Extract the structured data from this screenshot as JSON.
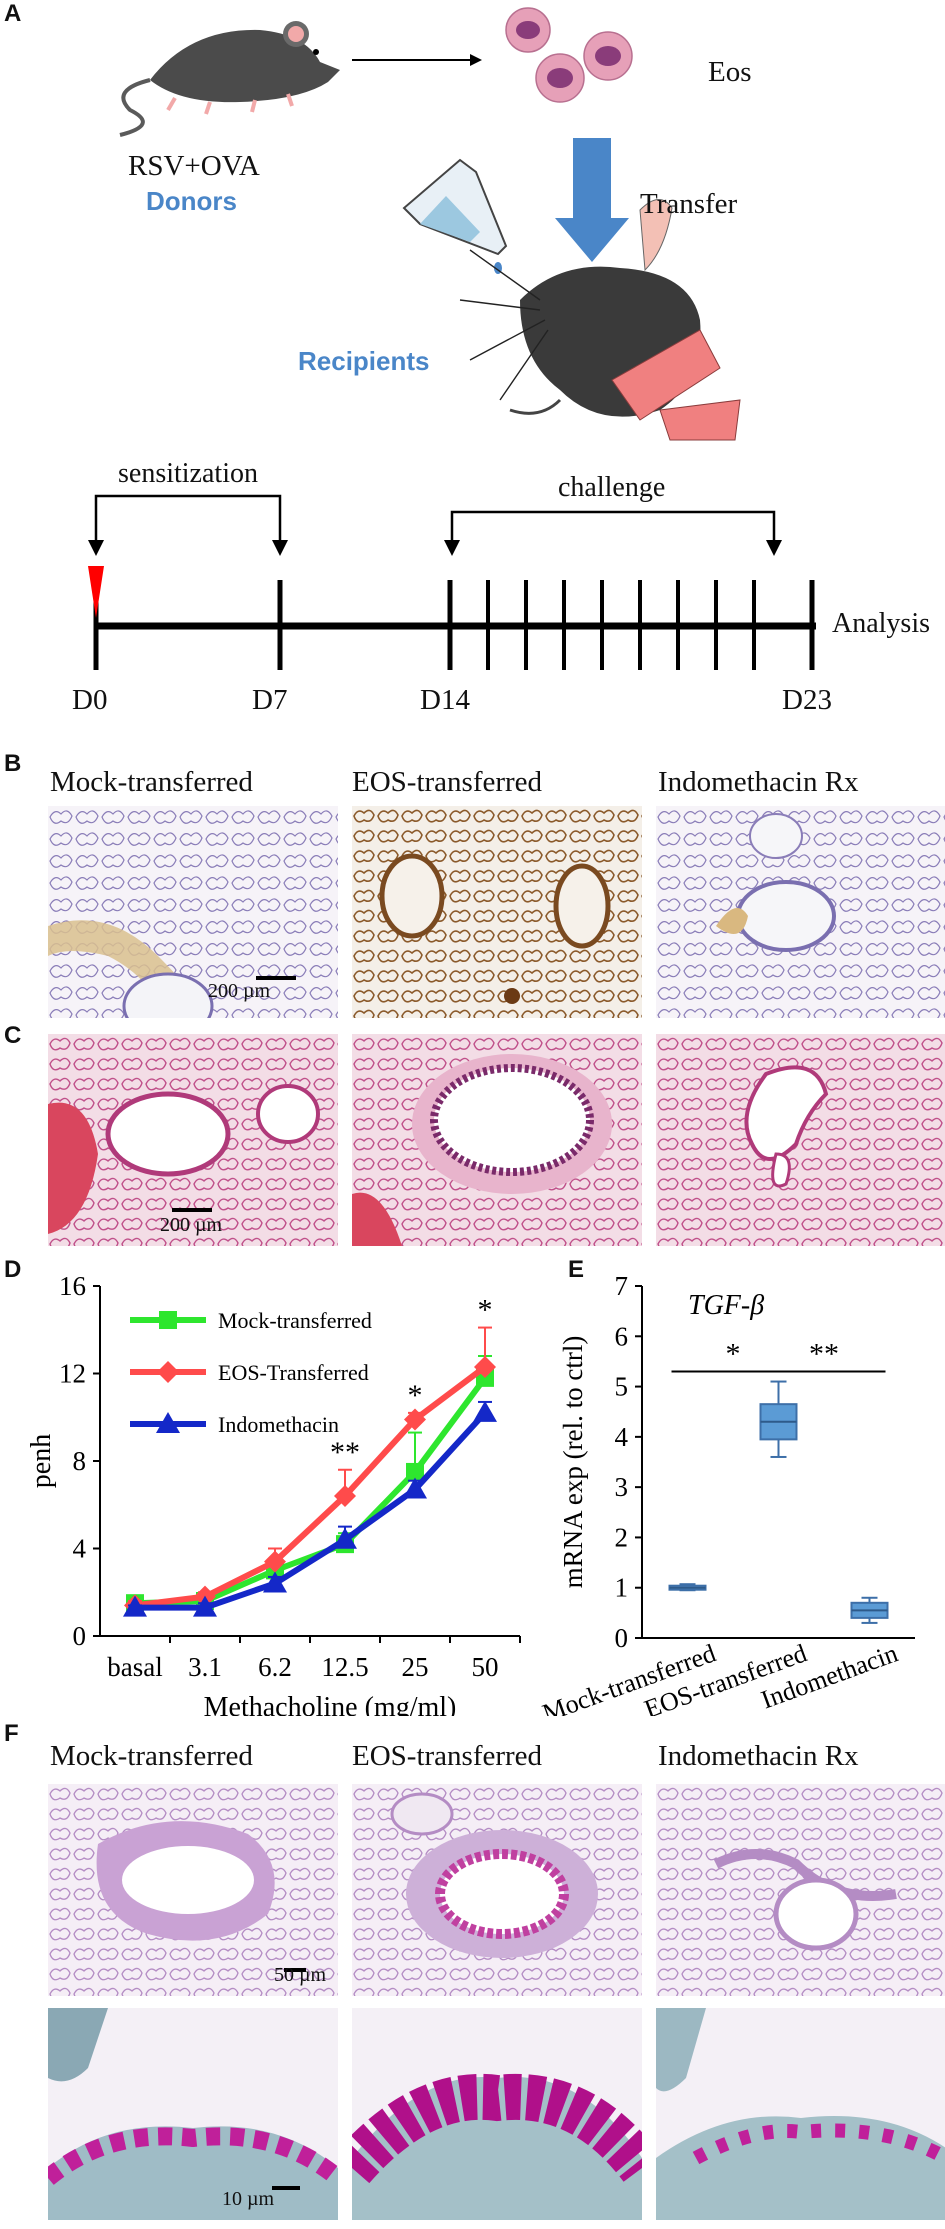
{
  "panel_labels": {
    "a": "A",
    "b": "B",
    "c": "C",
    "d": "D",
    "e": "E",
    "f": "F"
  },
  "panelA": {
    "donor_model": "RSV+OVA",
    "donors_label": "Donors",
    "eos_label": "Eos",
    "transfer_label": "Transfer",
    "recipients_label": "Recipients",
    "sensitization_label": "sensitization",
    "challenge_label": "challenge",
    "analysis_label": "Analysis",
    "days": {
      "d0": "D0",
      "d7": "D7",
      "d14": "D14",
      "d23": "D23"
    },
    "accent_blue": "#4a86c8",
    "marker_red": "#ff0000"
  },
  "panelB": {
    "captions": [
      "Mock-transferred",
      "EOS-transferred",
      "Indomethacin Rx"
    ],
    "scale_bar": "200 µm"
  },
  "panelC": {
    "scale_bar": "200 µm"
  },
  "panelF": {
    "captions": [
      "Mock-transferred",
      "EOS-transferred",
      "Indomethacin Rx"
    ],
    "scale_bar_top": "50 µm",
    "scale_bar_bottom": "10 µm"
  },
  "chart_data": [
    {
      "type": "line",
      "ylabel": "penh",
      "xlabel": "Methacholine (mg/ml)",
      "categories": [
        "basal",
        "3.1",
        "6.2",
        "12.5",
        "25",
        "50"
      ],
      "ylim": [
        0,
        16
      ],
      "yticks": [
        "0",
        "4",
        "8",
        "12",
        "16"
      ],
      "series": [
        {
          "name": "Mock-transferred",
          "color": "#2ee62e",
          "marker": "square",
          "values": [
            1.5,
            1.6,
            3.0,
            4.2,
            7.5,
            11.8
          ],
          "err": [
            0.2,
            0.2,
            0.4,
            0.5,
            1.8,
            1.0
          ]
        },
        {
          "name": "EOS-Transferred",
          "color": "#ff4b4b",
          "marker": "diamond",
          "values": [
            1.4,
            1.8,
            3.4,
            6.4,
            9.9,
            12.3
          ],
          "err": [
            0.2,
            0.2,
            0.6,
            1.2,
            0.3,
            1.8
          ]
        },
        {
          "name": "Indomethacin",
          "color": "#1428c8",
          "marker": "triangle",
          "values": [
            1.3,
            1.3,
            2.4,
            4.4,
            6.7,
            10.2
          ],
          "err": [
            0.1,
            0.2,
            0.3,
            0.6,
            0.4,
            0.5
          ]
        }
      ],
      "annotations": [
        {
          "category": "12.5",
          "text": "**"
        },
        {
          "category": "25",
          "text": "*"
        },
        {
          "category": "50",
          "text": "*"
        }
      ]
    },
    {
      "type": "box",
      "title": "TGF-β",
      "ylabel": "mRNA exp (rel. to ctrl)",
      "categories": [
        "Mock-transferred",
        "EOS-transferred",
        "Indomethacin"
      ],
      "ylim": [
        0,
        7
      ],
      "yticks": [
        "0",
        "1",
        "2",
        "3",
        "4",
        "5",
        "6",
        "7"
      ],
      "boxes": [
        {
          "min": 0.95,
          "q1": 0.97,
          "median": 1.0,
          "q3": 1.04,
          "max": 1.07
        },
        {
          "min": 3.6,
          "q1": 3.95,
          "median": 4.3,
          "q3": 4.65,
          "max": 5.1
        },
        {
          "min": 0.3,
          "q1": 0.4,
          "median": 0.55,
          "q3": 0.7,
          "max": 0.8
        }
      ],
      "significance": [
        {
          "from": 0,
          "to": 1,
          "text": "*"
        },
        {
          "from": 1,
          "to": 2,
          "text": "**"
        }
      ],
      "box_color": "#5b9bd5"
    }
  ]
}
